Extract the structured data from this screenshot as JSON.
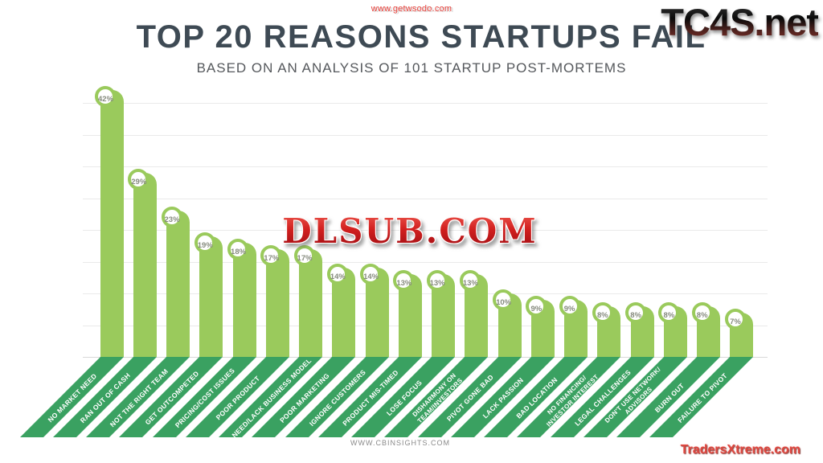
{
  "header": {
    "title": "TOP 20 REASONS STARTUPS FAIL",
    "subtitle": "BASED ON AN ANALYSIS OF 101 STARTUP POST-MORTEMS"
  },
  "watermarks": {
    "top": "www.getwsodo.com",
    "top_right": "TC4S.net",
    "center": "DLSUB.COM",
    "bottom_right": "TradersXtreme.com"
  },
  "footer": {
    "source": "WWW.CBINSIGHTS.COM"
  },
  "chart_data": {
    "type": "bar",
    "title": "TOP 20 REASONS STARTUPS FAIL",
    "subtitle": "BASED ON AN ANALYSIS OF 101 STARTUP POST-MORTEMS",
    "unit": "%",
    "ylim": [
      0,
      45
    ],
    "gridlines_every": 5,
    "grid": true,
    "legend": "none",
    "categories": [
      "NO MARKET NEED",
      "RAN OUT OF CASH",
      "NOT THE RIGHT TEAM",
      "GET OUTCOMPETED",
      "PRICING/COST ISSUES",
      "POOR PRODUCT",
      "NEED/LACK BUSINESS MODEL",
      "POOR MARKETING",
      "IGNORE CUSTOMERS",
      "PRODUCT MIS-TIMED",
      "LOSE FOCUS",
      "DISHARMONY ON\nTEAM/INVESTORS",
      "PIVOT GONE BAD",
      "LACK PASSION",
      "BAD LOCATION",
      "NO FINANCING/\nINVESTOR INTEREST",
      "LEGAL CHALLENGES",
      "DON'T USE NETWORK/\nADVISORS",
      "BURN OUT",
      "FAILURE TO PIVOT"
    ],
    "values": [
      42,
      29,
      23,
      19,
      18,
      17,
      17,
      14,
      14,
      13,
      13,
      13,
      10,
      9,
      9,
      8,
      8,
      8,
      8,
      7
    ],
    "value_labels": [
      "42%",
      "29%",
      "23%",
      "19%",
      "18%",
      "17%",
      "17%",
      "14%",
      "14%",
      "13%",
      "13%",
      "13%",
      "10%",
      "9%",
      "9%",
      "8%",
      "8%",
      "8%",
      "8%",
      "7%"
    ],
    "colors": {
      "bar": "#9aca5c",
      "ribbon": "#3aa161",
      "badge_ring": "#9aca5c",
      "badge_text": "#868b7e",
      "title_text": "#3e4a54",
      "subtitle_text": "#55585c",
      "gridline": "#eaeaea"
    }
  }
}
